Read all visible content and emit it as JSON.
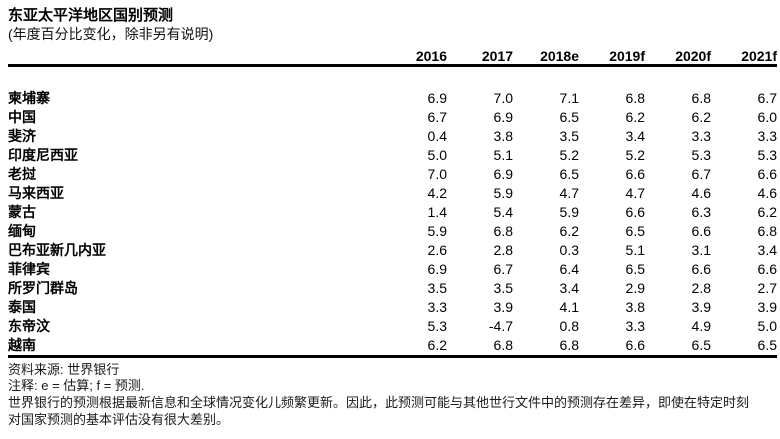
{
  "page": {
    "title": "东亚太平洋地区国别预测",
    "subtitle": "(年度百分比变化，除非另有说明)"
  },
  "chart_data": {
    "type": "table",
    "title": "东亚太平洋地区国别预测",
    "subtitle": "(年度百分比变化，除非另有说明)",
    "unit": "年度百分比变化",
    "columns": [
      "2016",
      "2017",
      "2018e",
      "2019f",
      "2020f",
      "2021f"
    ],
    "rows": [
      {
        "label": "柬埔寨",
        "values": [
          6.9,
          7.0,
          7.1,
          6.8,
          6.8,
          6.7
        ]
      },
      {
        "label": "中国",
        "values": [
          6.7,
          6.9,
          6.5,
          6.2,
          6.2,
          6.0
        ]
      },
      {
        "label": "斐济",
        "values": [
          0.4,
          3.8,
          3.5,
          3.4,
          3.3,
          3.3
        ]
      },
      {
        "label": "印度尼西亚",
        "values": [
          5.0,
          5.1,
          5.2,
          5.2,
          5.3,
          5.3
        ]
      },
      {
        "label": "老挝",
        "values": [
          7.0,
          6.9,
          6.5,
          6.6,
          6.7,
          6.6
        ]
      },
      {
        "label": "马来西亚",
        "values": [
          4.2,
          5.9,
          4.7,
          4.7,
          4.6,
          4.6
        ]
      },
      {
        "label": "蒙古",
        "values": [
          1.4,
          5.4,
          5.9,
          6.6,
          6.3,
          6.2
        ]
      },
      {
        "label": "缅甸",
        "values": [
          5.9,
          6.8,
          6.2,
          6.5,
          6.6,
          6.8
        ]
      },
      {
        "label": "巴布亚新几内亚",
        "values": [
          2.6,
          2.8,
          0.3,
          5.1,
          3.1,
          3.4
        ]
      },
      {
        "label": "菲律宾",
        "values": [
          6.9,
          6.7,
          6.4,
          6.5,
          6.6,
          6.6
        ]
      },
      {
        "label": "所罗门群岛",
        "values": [
          3.5,
          3.5,
          3.4,
          2.9,
          2.8,
          2.7
        ]
      },
      {
        "label": "泰国",
        "values": [
          3.3,
          3.9,
          4.1,
          3.8,
          3.9,
          3.9
        ]
      },
      {
        "label": "东帝汶",
        "values": [
          5.3,
          -4.7,
          0.8,
          3.3,
          4.9,
          5.0
        ]
      },
      {
        "label": "越南",
        "values": [
          6.2,
          6.8,
          6.8,
          6.6,
          6.5,
          6.5
        ]
      }
    ]
  },
  "footer": {
    "source": "资料来源: 世界银行",
    "notes": "注释: e = 估算; f = 预测.",
    "disclaimer_line1": "世界银行的预测根据最新信息和全球情况变化儿频繁更新。因此，此预测可能与其他世行文件中的预测存在差异，即使在特定时刻",
    "disclaimer_line2": "对国家预测的基本评估没有很大差别。"
  },
  "colors": {
    "text": "#000000",
    "background": "#ffffff",
    "rule": "#000000"
  }
}
